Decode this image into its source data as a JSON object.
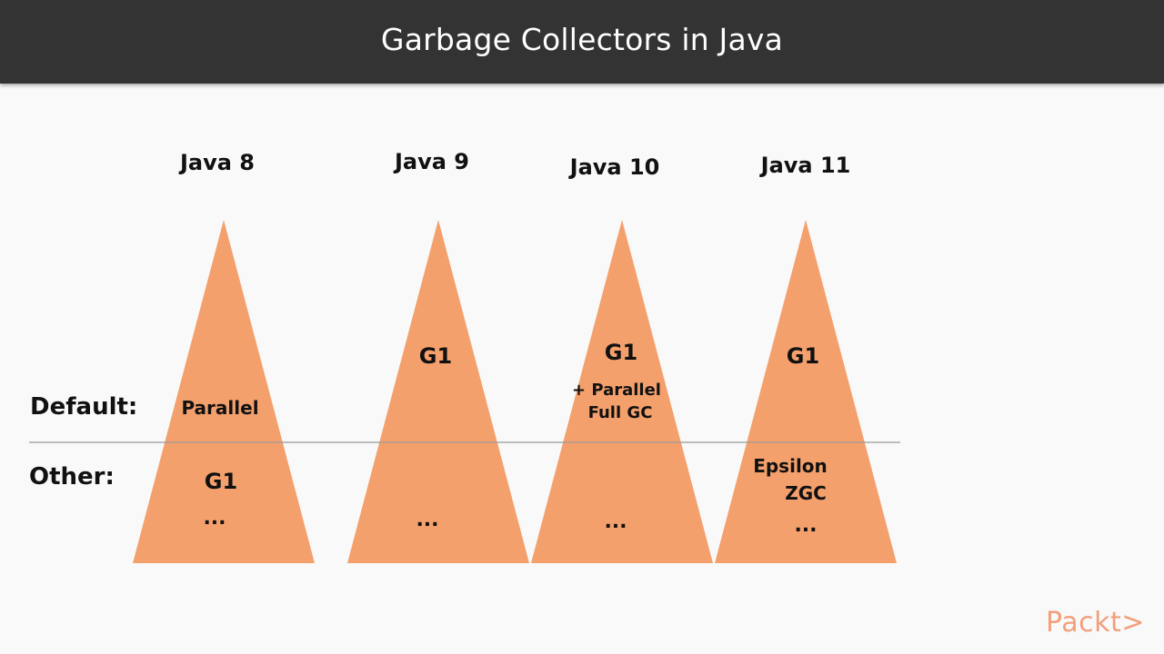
{
  "header": {
    "title": "Garbage Collectors in Java"
  },
  "rows": {
    "default_label": "Default:",
    "other_label": "Other:"
  },
  "columns": [
    {
      "version": "Java 8",
      "default": [
        "Parallel"
      ],
      "other": [
        "G1",
        "..."
      ]
    },
    {
      "version": "Java 9",
      "default": [
        "G1"
      ],
      "other": [
        "..."
      ]
    },
    {
      "version": "Java 10",
      "default": [
        "G1",
        "+ Parallel",
        "Full GC"
      ],
      "other": [
        "..."
      ]
    },
    {
      "version": "Java 11",
      "default": [
        "G1"
      ],
      "other": [
        "Epsilon",
        "ZGC",
        "..."
      ]
    }
  ],
  "colors": {
    "triangle": "#f4a06c",
    "divider": "#999999",
    "title_bar": "#333333"
  },
  "logo": {
    "text": "Packt>"
  }
}
